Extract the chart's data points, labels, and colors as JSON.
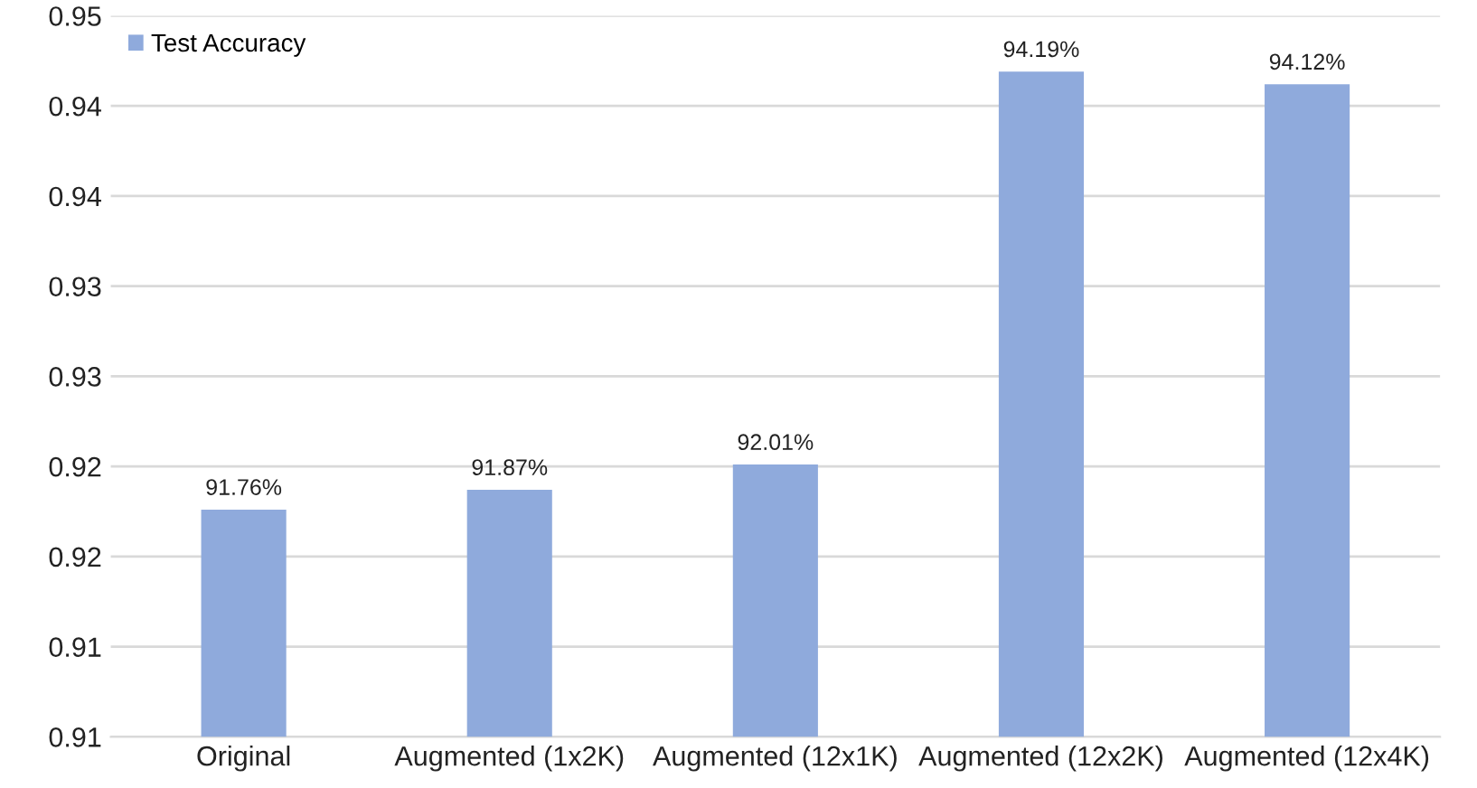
{
  "chart_data": {
    "type": "bar",
    "categories": [
      "Original",
      "Augmented (1x2K)",
      "Augmented (12x1K)",
      "Augmented (12x2K)",
      "Augmented (12x4K)"
    ],
    "series": [
      {
        "name": "Test Accuracy",
        "color": "#8faadc",
        "values": [
          0.9176,
          0.9187,
          0.9201,
          0.9419,
          0.9412
        ],
        "value_labels": [
          "91.76%",
          "91.87%",
          "92.01%",
          "94.19%",
          "94.12%"
        ]
      }
    ],
    "ylim": [
      0.905,
      0.945
    ],
    "yticks": [
      {
        "value": 0.905,
        "label": "0.91"
      },
      {
        "value": 0.91,
        "label": "0.91"
      },
      {
        "value": 0.915,
        "label": "0.92"
      },
      {
        "value": 0.92,
        "label": "0.92"
      },
      {
        "value": 0.925,
        "label": "0.93"
      },
      {
        "value": 0.93,
        "label": "0.93"
      },
      {
        "value": 0.935,
        "label": "0.94"
      },
      {
        "value": 0.94,
        "label": "0.94"
      },
      {
        "value": 0.945,
        "label": "0.95"
      }
    ],
    "grid": "y",
    "legend": "top left"
  }
}
